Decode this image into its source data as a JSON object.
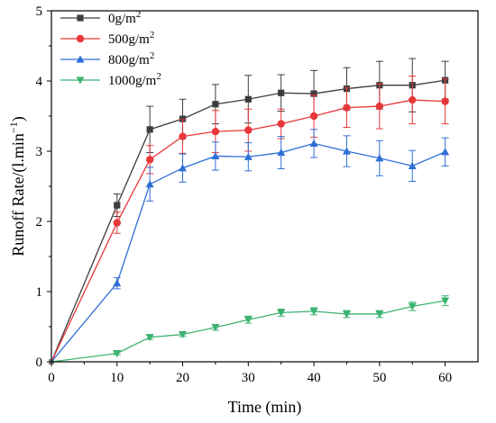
{
  "chart_data": {
    "type": "line",
    "xlabel": "Time (min)",
    "ylabel": "Runoff Rate/(l.min",
    "ylabel_unit_exp": "−1",
    "ylabel_close": ")",
    "xlim": [
      0,
      65
    ],
    "ylim": [
      0,
      5
    ],
    "xticks": [
      0,
      10,
      20,
      30,
      40,
      50,
      60
    ],
    "yticks": [
      0,
      1,
      2,
      3,
      4,
      5
    ],
    "x": [
      0,
      10,
      15,
      20,
      25,
      30,
      35,
      40,
      45,
      50,
      55,
      60
    ],
    "legend_position": "top-left",
    "series": [
      {
        "name": "0g/m",
        "name_sup": "2",
        "color": "#3d3d3d",
        "marker": "square",
        "values": [
          0,
          2.23,
          3.31,
          3.46,
          3.67,
          3.74,
          3.83,
          3.82,
          3.89,
          3.94,
          3.94,
          4.01
        ],
        "errors": [
          0,
          0.16,
          0.33,
          0.28,
          0.28,
          0.34,
          0.26,
          0.33,
          0.3,
          0.34,
          0.38,
          0.27
        ]
      },
      {
        "name": "500g/m",
        "name_sup": "2",
        "color": "#e8373a",
        "marker": "circle",
        "values": [
          0,
          1.98,
          2.88,
          3.21,
          3.28,
          3.3,
          3.39,
          3.5,
          3.62,
          3.64,
          3.73,
          3.71
        ],
        "errors": [
          0,
          0.15,
          0.2,
          0.24,
          0.3,
          0.3,
          0.21,
          0.3,
          0.28,
          0.32,
          0.34,
          0.32
        ]
      },
      {
        "name": "800g/m",
        "name_sup": "2",
        "color": "#2f6fd6",
        "marker": "triangle-up",
        "values": [
          0,
          1.12,
          2.53,
          2.76,
          2.93,
          2.92,
          2.98,
          3.11,
          3.0,
          2.9,
          2.79,
          2.99
        ],
        "errors": [
          0,
          0.08,
          0.24,
          0.2,
          0.2,
          0.2,
          0.23,
          0.2,
          0.22,
          0.25,
          0.22,
          0.2
        ]
      },
      {
        "name": "1000g/m",
        "name_sup": "2",
        "color": "#3cb371",
        "marker": "triangle-down",
        "values": [
          0,
          0.12,
          0.35,
          0.39,
          0.49,
          0.6,
          0.7,
          0.72,
          0.68,
          0.68,
          0.79,
          0.87
        ],
        "errors": [
          0,
          0.02,
          0.03,
          0.03,
          0.04,
          0.05,
          0.05,
          0.05,
          0.05,
          0.05,
          0.06,
          0.07
        ]
      }
    ]
  }
}
